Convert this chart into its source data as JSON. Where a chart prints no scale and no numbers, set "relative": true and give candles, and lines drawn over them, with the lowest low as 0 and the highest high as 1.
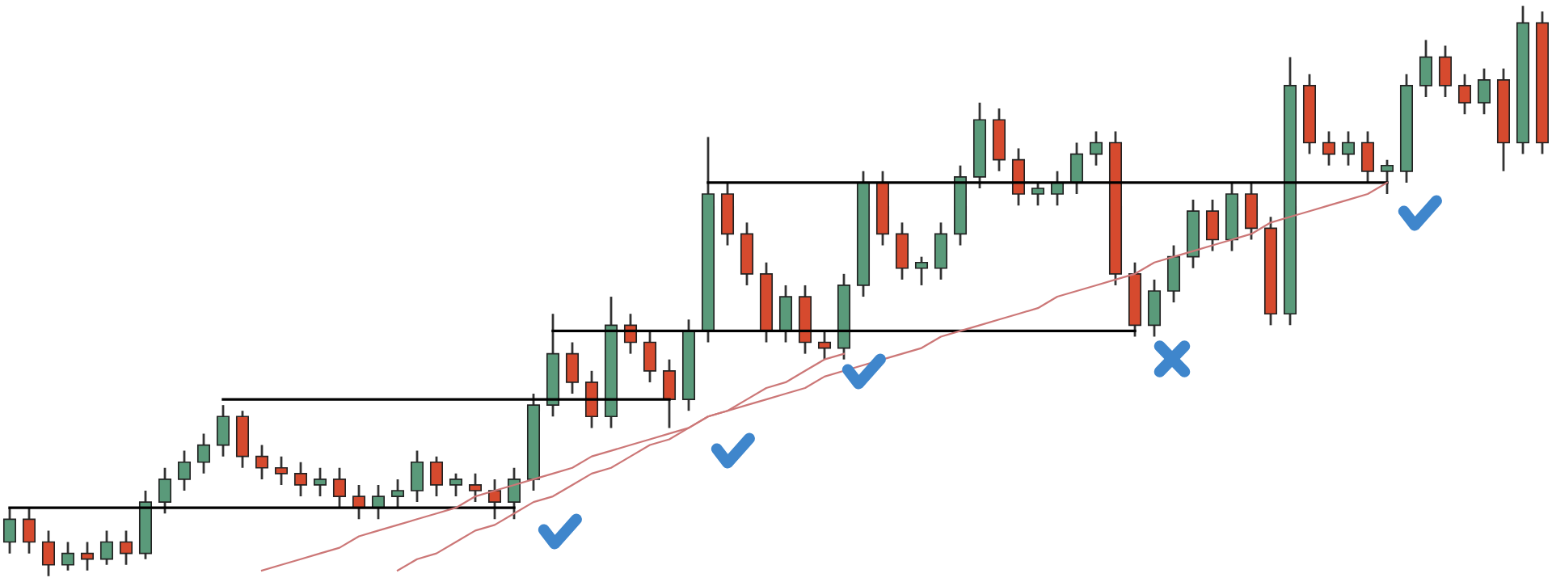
{
  "chart_data": {
    "type": "candlestick",
    "relative": true,
    "categories": [
      null,
      null,
      null,
      null,
      null,
      null,
      null,
      null,
      null,
      null,
      null,
      null,
      null,
      null,
      null,
      null,
      null,
      null,
      null,
      null,
      null,
      null,
      null,
      null,
      null,
      null,
      null,
      null,
      null,
      null,
      null,
      null,
      null,
      null,
      null,
      null,
      null,
      null,
      null,
      null,
      null,
      null,
      null,
      null,
      null,
      null,
      null,
      null,
      null,
      null,
      null,
      null,
      null,
      null,
      null,
      null,
      null,
      null,
      null,
      null,
      null,
      null,
      null,
      null,
      null,
      null,
      null,
      null,
      null,
      null,
      null,
      null,
      null,
      null,
      null,
      null,
      null,
      null,
      null,
      null
    ],
    "ohlc": [
      [
        0.06,
        0.12,
        0.04,
        0.1
      ],
      [
        0.1,
        0.12,
        0.04,
        0.06
      ],
      [
        0.06,
        0.08,
        0.0,
        0.02
      ],
      [
        0.02,
        0.06,
        0.01,
        0.04
      ],
      [
        0.04,
        0.06,
        0.01,
        0.03
      ],
      [
        0.03,
        0.08,
        0.02,
        0.06
      ],
      [
        0.06,
        0.08,
        0.02,
        0.04
      ],
      [
        0.04,
        0.15,
        0.03,
        0.13
      ],
      [
        0.13,
        0.19,
        0.11,
        0.17
      ],
      [
        0.17,
        0.22,
        0.15,
        0.2
      ],
      [
        0.2,
        0.25,
        0.18,
        0.23
      ],
      [
        0.23,
        0.3,
        0.21,
        0.28
      ],
      [
        0.28,
        0.29,
        0.19,
        0.21
      ],
      [
        0.21,
        0.23,
        0.17,
        0.19
      ],
      [
        0.19,
        0.21,
        0.16,
        0.18
      ],
      [
        0.18,
        0.2,
        0.14,
        0.16
      ],
      [
        0.16,
        0.19,
        0.14,
        0.17
      ],
      [
        0.17,
        0.19,
        0.12,
        0.14
      ],
      [
        0.14,
        0.16,
        0.1,
        0.12
      ],
      [
        0.12,
        0.16,
        0.1,
        0.14
      ],
      [
        0.14,
        0.17,
        0.12,
        0.15
      ],
      [
        0.15,
        0.22,
        0.13,
        0.2
      ],
      [
        0.2,
        0.21,
        0.14,
        0.16
      ],
      [
        0.16,
        0.18,
        0.14,
        0.17
      ],
      [
        0.16,
        0.18,
        0.13,
        0.15
      ],
      [
        0.15,
        0.17,
        0.1,
        0.13
      ],
      [
        0.13,
        0.19,
        0.1,
        0.17
      ],
      [
        0.17,
        0.32,
        0.15,
        0.3
      ],
      [
        0.3,
        0.46,
        0.28,
        0.39
      ],
      [
        0.39,
        0.41,
        0.32,
        0.34
      ],
      [
        0.34,
        0.36,
        0.26,
        0.28
      ],
      [
        0.28,
        0.49,
        0.26,
        0.44
      ],
      [
        0.44,
        0.46,
        0.39,
        0.41
      ],
      [
        0.41,
        0.43,
        0.34,
        0.36
      ],
      [
        0.36,
        0.38,
        0.26,
        0.31
      ],
      [
        0.31,
        0.45,
        0.29,
        0.43
      ],
      [
        0.43,
        0.77,
        0.41,
        0.67
      ],
      [
        0.67,
        0.69,
        0.58,
        0.6
      ],
      [
        0.6,
        0.62,
        0.51,
        0.53
      ],
      [
        0.53,
        0.55,
        0.41,
        0.43
      ],
      [
        0.43,
        0.51,
        0.41,
        0.49
      ],
      [
        0.49,
        0.51,
        0.39,
        0.41
      ],
      [
        0.41,
        0.43,
        0.38,
        0.4
      ],
      [
        0.4,
        0.53,
        0.38,
        0.51
      ],
      [
        0.51,
        0.71,
        0.49,
        0.69
      ],
      [
        0.69,
        0.71,
        0.58,
        0.6
      ],
      [
        0.6,
        0.62,
        0.52,
        0.54
      ],
      [
        0.54,
        0.56,
        0.51,
        0.55
      ],
      [
        0.54,
        0.62,
        0.52,
        0.6
      ],
      [
        0.6,
        0.72,
        0.58,
        0.7
      ],
      [
        0.7,
        0.83,
        0.68,
        0.8
      ],
      [
        0.8,
        0.82,
        0.71,
        0.73
      ],
      [
        0.73,
        0.75,
        0.65,
        0.67
      ],
      [
        0.67,
        0.69,
        0.65,
        0.68
      ],
      [
        0.67,
        0.71,
        0.65,
        0.69
      ],
      [
        0.69,
        0.76,
        0.67,
        0.74
      ],
      [
        0.74,
        0.78,
        0.72,
        0.76
      ],
      [
        0.76,
        0.78,
        0.51,
        0.53
      ],
      [
        0.53,
        0.55,
        0.42,
        0.44
      ],
      [
        0.44,
        0.52,
        0.42,
        0.5
      ],
      [
        0.5,
        0.58,
        0.48,
        0.56
      ],
      [
        0.56,
        0.66,
        0.54,
        0.64
      ],
      [
        0.64,
        0.66,
        0.57,
        0.59
      ],
      [
        0.59,
        0.69,
        0.57,
        0.67
      ],
      [
        0.67,
        0.69,
        0.59,
        0.61
      ],
      [
        0.61,
        0.63,
        0.44,
        0.46
      ],
      [
        0.46,
        0.91,
        0.44,
        0.86
      ],
      [
        0.86,
        0.88,
        0.74,
        0.76
      ],
      [
        0.76,
        0.78,
        0.72,
        0.74
      ],
      [
        0.74,
        0.78,
        0.72,
        0.76
      ],
      [
        0.76,
        0.78,
        0.69,
        0.71
      ],
      [
        0.71,
        0.73,
        0.67,
        0.72
      ],
      [
        0.71,
        0.88,
        0.69,
        0.86
      ],
      [
        0.86,
        0.94,
        0.84,
        0.91
      ],
      [
        0.91,
        0.93,
        0.84,
        0.86
      ],
      [
        0.86,
        0.88,
        0.81,
        0.83
      ],
      [
        0.83,
        0.89,
        0.81,
        0.87
      ],
      [
        0.87,
        0.89,
        0.71,
        0.76
      ],
      [
        0.76,
        1.0,
        0.74,
        0.97
      ],
      [
        0.97,
        0.99,
        0.74,
        0.76
      ]
    ],
    "colors": [
      "#5a9a7a",
      "#d64a2e",
      "#d64a2e",
      "#5a9a7a",
      "#d64a2e",
      "#5a9a7a",
      "#d64a2e",
      "#5a9a7a",
      "#5a9a7a",
      "#5a9a7a",
      "#5a9a7a",
      "#5a9a7a",
      "#d64a2e",
      "#d64a2e",
      "#d64a2e",
      "#d64a2e",
      "#5a9a7a",
      "#d64a2e",
      "#d64a2e",
      "#5a9a7a",
      "#5a9a7a",
      "#5a9a7a",
      "#d64a2e",
      "#5a9a7a",
      "#d64a2e",
      "#d64a2e",
      "#5a9a7a",
      "#5a9a7a",
      "#5a9a7a",
      "#d64a2e",
      "#d64a2e",
      "#5a9a7a",
      "#d64a2e",
      "#d64a2e",
      "#d64a2e",
      "#5a9a7a",
      "#5a9a7a",
      "#d64a2e",
      "#d64a2e",
      "#d64a2e",
      "#5a9a7a",
      "#d64a2e",
      "#d64a2e",
      "#5a9a7a",
      "#5a9a7a",
      "#d64a2e",
      "#d64a2e",
      "#5a9a7a",
      "#5a9a7a",
      "#5a9a7a",
      "#5a9a7a",
      "#d64a2e",
      "#d64a2e",
      "#5a9a7a",
      "#5a9a7a",
      "#5a9a7a",
      "#5a9a7a",
      "#d64a2e",
      "#d64a2e",
      "#5a9a7a",
      "#5a9a7a",
      "#5a9a7a",
      "#d64a2e",
      "#5a9a7a",
      "#d64a2e",
      "#d64a2e",
      "#5a9a7a",
      "#d64a2e",
      "#d64a2e",
      "#5a9a7a",
      "#d64a2e",
      "#5a9a7a",
      "#5a9a7a",
      "#5a9a7a",
      "#d64a2e",
      "#d64a2e",
      "#5a9a7a",
      "#d64a2e",
      "#5a9a7a",
      "#d64a2e"
    ],
    "series": [
      {
        "type": "line",
        "color": "#000000",
        "values": [
          0.12,
          0.12,
          0.12,
          0.12,
          0.12,
          0.12,
          0.12,
          0.12,
          0.12,
          0.12,
          0.12,
          0.12,
          0.12,
          0.12,
          0.12,
          0.12,
          0.12,
          0.12,
          0.12,
          0.12,
          0.12,
          0.12,
          0.12,
          0.12,
          0.12,
          0.12,
          0.12,
          null,
          null,
          null,
          null,
          null,
          null,
          null,
          null,
          null,
          null,
          null,
          null,
          null,
          null,
          null,
          null,
          null,
          null,
          null,
          null,
          null,
          null,
          null,
          null,
          null,
          null,
          null,
          null,
          null,
          null,
          null,
          null,
          null,
          null,
          null,
          null,
          null,
          null,
          null,
          null,
          null,
          null,
          null,
          null,
          null,
          null,
          null,
          null,
          null,
          null,
          null,
          null,
          null
        ]
      },
      {
        "type": "line",
        "color": "#000000",
        "values": [
          null,
          null,
          null,
          null,
          null,
          null,
          null,
          null,
          null,
          null,
          null,
          0.31,
          0.31,
          0.31,
          0.31,
          0.31,
          0.31,
          0.31,
          0.31,
          0.31,
          0.31,
          0.31,
          0.31,
          0.31,
          0.31,
          0.31,
          0.31,
          0.31,
          0.31,
          0.31,
          0.31,
          0.31,
          0.31,
          0.31,
          0.31,
          null,
          null,
          null,
          null,
          null,
          null,
          null,
          null,
          null,
          null,
          null,
          null,
          null,
          null,
          null,
          null,
          null,
          null,
          null,
          null,
          null,
          null,
          null,
          null,
          null,
          null,
          null,
          null,
          null,
          null,
          null,
          null,
          null,
          null,
          null,
          null,
          null,
          null,
          null,
          null,
          null,
          null,
          null,
          null,
          null
        ]
      },
      {
        "type": "line",
        "color": "#000000",
        "values": [
          null,
          null,
          null,
          null,
          null,
          null,
          null,
          null,
          null,
          null,
          null,
          null,
          null,
          null,
          null,
          null,
          null,
          null,
          null,
          null,
          null,
          null,
          null,
          null,
          null,
          null,
          null,
          null,
          0.43,
          0.43,
          0.43,
          0.43,
          0.43,
          0.43,
          0.43,
          0.43,
          0.43,
          0.43,
          0.43,
          0.43,
          0.43,
          0.43,
          0.43,
          0.43,
          0.43,
          0.43,
          0.43,
          0.43,
          0.43,
          0.43,
          0.43,
          0.43,
          0.43,
          0.43,
          0.43,
          0.43,
          0.43,
          0.43,
          0.43,
          null,
          null,
          null,
          null,
          null,
          null,
          null,
          null,
          null,
          null,
          null,
          null,
          null,
          null,
          null,
          null,
          null,
          null,
          null,
          null,
          null
        ]
      },
      {
        "type": "line",
        "color": "#000000",
        "values": [
          null,
          null,
          null,
          null,
          null,
          null,
          null,
          null,
          null,
          null,
          null,
          null,
          null,
          null,
          null,
          null,
          null,
          null,
          null,
          null,
          null,
          null,
          null,
          null,
          null,
          null,
          null,
          null,
          null,
          null,
          null,
          null,
          null,
          null,
          null,
          null,
          0.69,
          0.69,
          0.69,
          0.69,
          0.69,
          0.69,
          0.69,
          0.69,
          0.69,
          0.69,
          0.69,
          0.69,
          0.69,
          0.69,
          0.69,
          0.69,
          0.69,
          0.69,
          0.69,
          0.69,
          0.69,
          0.69,
          0.69,
          0.69,
          0.69,
          0.69,
          0.69,
          0.69,
          0.69,
          0.69,
          0.69,
          0.69,
          0.69,
          0.69,
          0.69,
          0.69,
          null,
          null,
          null,
          null,
          null,
          null,
          null,
          null
        ]
      },
      {
        "type": "line",
        "color": "#cc7777",
        "values": [
          null,
          null,
          null,
          null,
          null,
          null,
          null,
          null,
          null,
          null,
          null,
          null,
          null,
          0.01,
          0.02,
          0.03,
          0.04,
          0.05,
          0.07,
          0.08,
          0.09,
          0.1,
          0.11,
          0.12,
          0.14,
          0.15,
          0.16,
          0.17,
          0.18,
          0.19,
          0.21,
          0.22,
          0.23,
          0.24,
          0.25,
          0.26,
          0.28,
          0.29,
          0.3,
          0.31,
          0.32,
          0.33,
          0.35,
          0.36,
          0.37,
          0.38,
          0.39,
          0.4,
          0.42,
          0.43,
          0.44,
          0.45,
          0.46,
          0.47,
          0.49,
          0.5,
          0.51,
          0.52,
          0.53,
          0.55,
          0.56,
          0.57,
          0.58,
          0.59,
          0.6,
          0.62,
          0.63,
          0.64,
          0.65,
          0.66,
          0.67,
          0.69,
          null,
          null,
          null,
          null,
          null,
          null,
          null,
          null
        ]
      },
      {
        "type": "line",
        "color": "#cc7777",
        "values": [
          null,
          null,
          null,
          null,
          null,
          null,
          null,
          null,
          null,
          null,
          null,
          null,
          null,
          null,
          null,
          null,
          null,
          null,
          null,
          null,
          0.01,
          0.03,
          0.04,
          0.06,
          0.08,
          0.09,
          0.11,
          0.13,
          0.14,
          0.16,
          0.18,
          0.19,
          0.21,
          0.23,
          0.24,
          0.26,
          0.28,
          0.29,
          0.31,
          0.33,
          0.34,
          0.36,
          0.38,
          0.39,
          null,
          null,
          null,
          null,
          null,
          null,
          null,
          null,
          null,
          null,
          null,
          null,
          null,
          null,
          null,
          null,
          null,
          null,
          null,
          null,
          null,
          null,
          null,
          null,
          null,
          null,
          null,
          null,
          null,
          null,
          null,
          null,
          null,
          null,
          null,
          null
        ]
      }
    ]
  }
}
